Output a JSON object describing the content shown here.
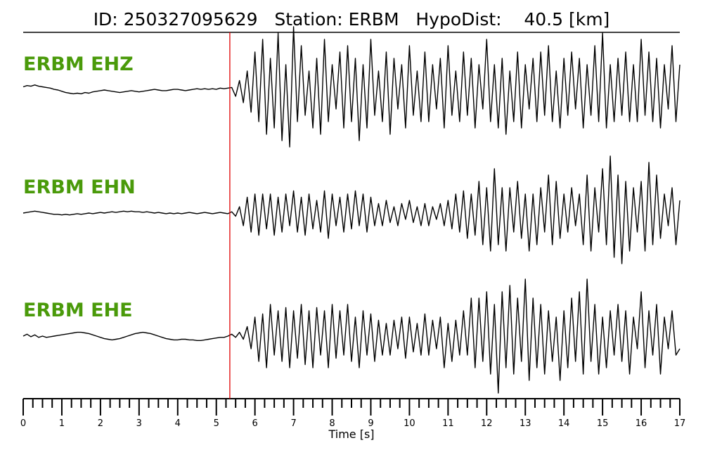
{
  "chart_data": {
    "type": "line",
    "title": "ID: 250327095629   Station: ERBM   HypoDist:    40.5 [km]",
    "xlabel": "Time [s]",
    "xlim": [
      0,
      17
    ],
    "xticks": [
      0,
      1,
      2,
      3,
      4,
      5,
      6,
      7,
      8,
      9,
      10,
      11,
      12,
      13,
      14,
      15,
      16,
      17
    ],
    "xminorticks": [
      0.25,
      0.5,
      0.75,
      1.25,
      1.5,
      1.75,
      2.25,
      2.5,
      2.75,
      3.25,
      3.5,
      3.75,
      4.25,
      4.5,
      4.75,
      5.25,
      5.5,
      5.75,
      6.25,
      6.5,
      6.75,
      7.25,
      7.5,
      7.75,
      8.25,
      8.5,
      8.75,
      9.25,
      9.5,
      9.75,
      10.25,
      10.5,
      10.75,
      11.25,
      11.5,
      11.75,
      12.25,
      12.5,
      12.75,
      13.25,
      13.5,
      13.75,
      14.25,
      14.5,
      14.75,
      15.25,
      15.5,
      15.75,
      16.25,
      16.5,
      16.75
    ],
    "pick_time": 5.35,
    "pick_color": "#e00000",
    "label_color": "#4a9a0a",
    "ylim": [
      -1,
      1
    ],
    "x": [
      0,
      0.1,
      0.2,
      0.3,
      0.4,
      0.5,
      0.6,
      0.7,
      0.8,
      0.9,
      1,
      1.1,
      1.2,
      1.3,
      1.4,
      1.5,
      1.6,
      1.7,
      1.8,
      1.9,
      2,
      2.1,
      2.2,
      2.3,
      2.4,
      2.5,
      2.6,
      2.7,
      2.8,
      2.9,
      3,
      3.1,
      3.2,
      3.3,
      3.4,
      3.5,
      3.6,
      3.7,
      3.8,
      3.9,
      4,
      4.1,
      4.2,
      4.3,
      4.4,
      4.5,
      4.6,
      4.7,
      4.8,
      4.9,
      5,
      5.1,
      5.2,
      5.3,
      5.4,
      5.5,
      5.6,
      5.7,
      5.8,
      5.9,
      6,
      6.1,
      6.2,
      6.3,
      6.4,
      6.5,
      6.6,
      6.7,
      6.8,
      6.9,
      7,
      7.1,
      7.2,
      7.3,
      7.4,
      7.5,
      7.6,
      7.7,
      7.8,
      7.9,
      8,
      8.1,
      8.2,
      8.3,
      8.4,
      8.5,
      8.6,
      8.7,
      8.8,
      8.9,
      9,
      9.1,
      9.2,
      9.3,
      9.4,
      9.5,
      9.6,
      9.7,
      9.8,
      9.9,
      10,
      10.1,
      10.2,
      10.3,
      10.4,
      10.5,
      10.6,
      10.7,
      10.8,
      10.9,
      11,
      11.1,
      11.2,
      11.3,
      11.4,
      11.5,
      11.6,
      11.7,
      11.8,
      11.9,
      12,
      12.1,
      12.2,
      12.3,
      12.4,
      12.5,
      12.6,
      12.7,
      12.8,
      12.9,
      13,
      13.1,
      13.2,
      13.3,
      13.4,
      13.5,
      13.6,
      13.7,
      13.8,
      13.9,
      14,
      14.1,
      14.2,
      14.3,
      14.4,
      14.5,
      14.6,
      14.7,
      14.8,
      14.9,
      15,
      15.1,
      15.2,
      15.3,
      15.4,
      15.5,
      15.6,
      15.7,
      15.8,
      15.9,
      16,
      16.1,
      16.2,
      16.3,
      16.4,
      16.5,
      16.6,
      16.7,
      16.8,
      16.9,
      17
    ],
    "series": [
      {
        "name": "ERBM EHZ",
        "color": "#000000",
        "values": [
          0.05,
          0.07,
          0.06,
          0.08,
          0.06,
          0.05,
          0.04,
          0.03,
          0.01,
          0,
          -0.02,
          -0.04,
          -0.05,
          -0.06,
          -0.05,
          -0.06,
          -0.04,
          -0.05,
          -0.03,
          -0.02,
          -0.01,
          0,
          -0.01,
          -0.02,
          -0.03,
          -0.04,
          -0.03,
          -0.02,
          -0.01,
          -0.02,
          -0.03,
          -0.02,
          -0.01,
          0,
          0.01,
          0,
          -0.01,
          -0.01,
          0,
          0.01,
          0.01,
          0,
          -0.01,
          0,
          0.01,
          0.02,
          0.01,
          0.02,
          0.01,
          0.02,
          0.01,
          0.03,
          0.02,
          0.03,
          0.04,
          -0.1,
          0.15,
          -0.2,
          0.3,
          -0.35,
          0.6,
          -0.5,
          0.8,
          -0.7,
          0.5,
          -0.6,
          0.9,
          -0.8,
          0.4,
          -0.9,
          1.0,
          -0.5,
          0.7,
          -0.4,
          0.3,
          -0.6,
          0.5,
          -0.7,
          0.8,
          -0.5,
          0.4,
          -0.3,
          0.6,
          -0.6,
          0.7,
          -0.5,
          0.5,
          -0.8,
          0.4,
          -0.6,
          0.8,
          -0.4,
          0.3,
          -0.5,
          0.6,
          -0.7,
          0.5,
          -0.3,
          0.4,
          -0.6,
          0.7,
          -0.4,
          0.3,
          -0.5,
          0.6,
          -0.5,
          0.4,
          -0.3,
          0.5,
          -0.6,
          0.7,
          -0.4,
          0.3,
          -0.5,
          0.6,
          -0.4,
          0.5,
          -0.6,
          0.4,
          -0.3,
          0.8,
          -0.5,
          0.4,
          -0.6,
          0.5,
          -0.7,
          0.3,
          -0.5,
          0.6,
          -0.6,
          0.4,
          -0.3,
          0.5,
          -0.5,
          0.6,
          -0.4,
          0.7,
          -0.5,
          0.3,
          -0.6,
          0.5,
          -0.4,
          0.6,
          -0.3,
          0.5,
          -0.6,
          0.4,
          -0.4,
          0.7,
          -0.5,
          0.9,
          -0.6,
          0.4,
          -0.5,
          0.5,
          -0.4,
          0.6,
          -0.5,
          0.4,
          -0.5,
          0.8,
          -0.4,
          0.6,
          -0.5,
          0.5,
          -0.6,
          0.4,
          -0.3,
          0.7,
          -0.5,
          0.4
        ]
      },
      {
        "name": "ERBM EHN",
        "color": "#000000",
        "values": [
          0,
          0.01,
          0.02,
          0.03,
          0.02,
          0.01,
          0,
          -0.01,
          -0.02,
          -0.02,
          -0.03,
          -0.02,
          -0.03,
          -0.02,
          -0.01,
          -0.02,
          -0.01,
          0,
          -0.01,
          0,
          0.01,
          0,
          0.01,
          0.02,
          0.01,
          0.02,
          0.03,
          0.02,
          0.03,
          0.02,
          0.02,
          0.01,
          0.02,
          0.01,
          0,
          0.01,
          0,
          -0.01,
          0,
          -0.01,
          0,
          -0.01,
          0,
          0.01,
          0,
          -0.01,
          0,
          0.01,
          0,
          -0.01,
          0,
          0.01,
          0,
          -0.01,
          0.02,
          -0.05,
          0.1,
          -0.2,
          0.25,
          -0.3,
          0.3,
          -0.35,
          0.3,
          -0.25,
          0.3,
          -0.35,
          0.25,
          -0.3,
          0.3,
          -0.2,
          0.35,
          -0.3,
          0.25,
          -0.35,
          0.3,
          -0.25,
          0.2,
          -0.3,
          0.35,
          -0.4,
          0.3,
          -0.2,
          0.25,
          -0.3,
          0.3,
          -0.25,
          0.35,
          -0.2,
          0.3,
          -0.3,
          0.25,
          -0.2,
          0.15,
          -0.2,
          0.2,
          -0.15,
          0.1,
          -0.2,
          0.15,
          -0.1,
          0.2,
          -0.15,
          0.1,
          -0.2,
          0.15,
          -0.2,
          0.1,
          -0.1,
          0.15,
          -0.2,
          0.2,
          -0.25,
          0.3,
          -0.3,
          0.35,
          -0.4,
          0.3,
          -0.35,
          0.5,
          -0.5,
          0.4,
          -0.6,
          0.7,
          -0.5,
          0.4,
          -0.6,
          0.4,
          -0.3,
          0.5,
          -0.4,
          0.3,
          -0.6,
          0.3,
          -0.5,
          0.4,
          -0.3,
          0.6,
          -0.5,
          0.5,
          -0.4,
          0.3,
          -0.3,
          0.4,
          -0.2,
          0.3,
          -0.5,
          0.6,
          -0.6,
          0.4,
          -0.3,
          0.7,
          -0.5,
          0.9,
          -0.7,
          0.6,
          -0.8,
          0.5,
          -0.6,
          0.4,
          -0.3,
          0.5,
          -0.6,
          0.8,
          -0.5,
          0.6,
          -0.4,
          0.3,
          -0.2,
          0.4,
          -0.5,
          0.2
        ]
      },
      {
        "name": "ERBM EHE",
        "color": "#000000",
        "values": [
          0,
          0.03,
          -0.01,
          0.02,
          -0.02,
          0,
          -0.02,
          -0.01,
          0,
          0.01,
          0.02,
          0.03,
          0.04,
          0.05,
          0.06,
          0.06,
          0.05,
          0.04,
          0.02,
          0,
          -0.02,
          -0.04,
          -0.05,
          -0.06,
          -0.05,
          -0.04,
          -0.02,
          0,
          0.02,
          0.04,
          0.05,
          0.06,
          0.05,
          0.04,
          0.02,
          0,
          -0.02,
          -0.04,
          -0.05,
          -0.06,
          -0.06,
          -0.05,
          -0.05,
          -0.06,
          -0.06,
          -0.07,
          -0.07,
          -0.06,
          -0.05,
          -0.04,
          -0.03,
          -0.02,
          -0.02,
          0,
          0.03,
          -0.02,
          0.06,
          -0.05,
          0.15,
          -0.2,
          0.3,
          -0.4,
          0.35,
          -0.5,
          0.5,
          -0.3,
          0.4,
          -0.4,
          0.45,
          -0.5,
          0.4,
          -0.35,
          0.5,
          -0.45,
          0.4,
          -0.5,
          0.45,
          -0.3,
          0.4,
          -0.5,
          0.5,
          -0.35,
          0.4,
          -0.3,
          0.5,
          -0.4,
          0.3,
          -0.5,
          0.4,
          -0.3,
          0.35,
          -0.4,
          0.25,
          -0.3,
          0.2,
          -0.3,
          0.25,
          -0.2,
          0.3,
          -0.35,
          0.3,
          -0.25,
          0.2,
          -0.3,
          0.35,
          -0.3,
          0.25,
          -0.2,
          0.3,
          -0.5,
          0.2,
          -0.4,
          0.25,
          -0.3,
          0.4,
          -0.3,
          0.6,
          -0.5,
          0.6,
          -0.4,
          0.7,
          -0.6,
          0.5,
          -0.9,
          0.7,
          -0.5,
          0.8,
          -0.6,
          0.6,
          -0.4,
          0.9,
          -0.7,
          0.6,
          -0.5,
          0.5,
          -0.6,
          0.4,
          -0.4,
          0.3,
          -0.7,
          0.4,
          -0.5,
          0.6,
          -0.4,
          0.7,
          -0.6,
          0.9,
          -0.4,
          0.5,
          -0.6,
          0.3,
          -0.5,
          0.4,
          -0.3,
          0.5,
          -0.4,
          0.4,
          -0.6,
          0.3,
          -0.2,
          0.7,
          -0.5,
          0.4,
          -0.3,
          0.5,
          -0.6,
          0.3,
          -0.2,
          0.4,
          -0.3,
          -0.2
        ]
      }
    ]
  }
}
